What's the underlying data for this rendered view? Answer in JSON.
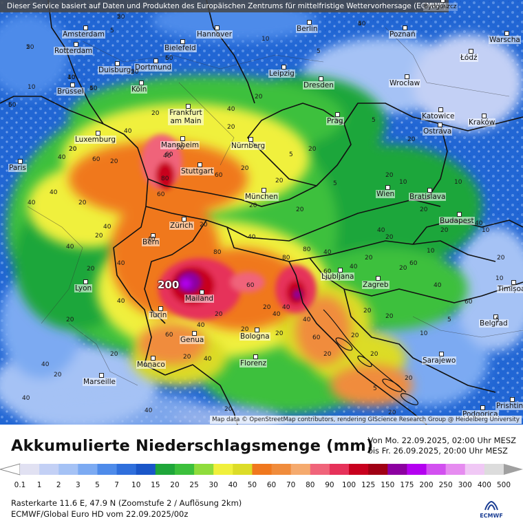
{
  "banner": "Dieser Service basiert auf Daten und Produkten des Europäischen Zentrums für mittelfristige Wettervorhersage (ECMWF)",
  "attribution": "Map data © OpenStreetMap contributors, rendering GIScience Research Group @ Heidelberg University",
  "cities": [
    {
      "name": "Amsterdam"
    },
    {
      "name": "Hannover"
    },
    {
      "name": "Berlin"
    },
    {
      "name": "Poznań"
    },
    {
      "name": "Warscha"
    },
    {
      "name": "Rotterdam"
    },
    {
      "name": "Bielefeld"
    },
    {
      "name": "Łódź"
    },
    {
      "name": "Duisburg"
    },
    {
      "name": "Dortmund"
    },
    {
      "name": "Leipzig"
    },
    {
      "name": "Brüssel"
    },
    {
      "name": "Köln"
    },
    {
      "name": "Dresden"
    },
    {
      "name": "Wrocław"
    },
    {
      "name": "Frankfurt am Main"
    },
    {
      "name": "Katowice"
    },
    {
      "name": "Prag"
    },
    {
      "name": "Kraków"
    },
    {
      "name": "Ostrava"
    },
    {
      "name": "Luxemburg"
    },
    {
      "name": "Mannheim"
    },
    {
      "name": "Nürnberg"
    },
    {
      "name": "Paris"
    },
    {
      "name": "Stuttgart"
    },
    {
      "name": "Wien"
    },
    {
      "name": "Bratislava"
    },
    {
      "name": "München"
    },
    {
      "name": "Zürich"
    },
    {
      "name": "Budapest"
    },
    {
      "name": "Bern"
    },
    {
      "name": "Lyon"
    },
    {
      "name": "Ljubljana"
    },
    {
      "name": "Zagreb"
    },
    {
      "name": "Timișoa"
    },
    {
      "name": "Mailand"
    },
    {
      "name": "Turin"
    },
    {
      "name": "Belgrad"
    },
    {
      "name": "Genua"
    },
    {
      "name": "Bologna"
    },
    {
      "name": "Monaco"
    },
    {
      "name": "Florenz"
    },
    {
      "name": "Sarajewo"
    },
    {
      "name": "Marseille"
    },
    {
      "name": "Podgorica"
    },
    {
      "name": "Prishtin"
    },
    {
      "name": "Bydgoszcz"
    }
  ],
  "max_label": "200",
  "title": "Akkumulierte Niederschlagsmenge (mm)",
  "period": {
    "from": "Von Mo. 22.09.2025, 02:00 Uhr MESZ",
    "to": "bis Fr. 26.09.2025, 20:00 Uhr MESZ"
  },
  "legend": {
    "labels": [
      "0.1",
      "1",
      "2",
      "3",
      "5",
      "7",
      "10",
      "15",
      "20",
      "25",
      "30",
      "40",
      "50",
      "60",
      "70",
      "80",
      "90",
      "100",
      "125",
      "150",
      "175",
      "200",
      "250",
      "300",
      "400",
      "500"
    ],
    "colors": [
      "#e1e1f2",
      "#c3d0f5",
      "#a5c2f5",
      "#7caaf2",
      "#4e8bea",
      "#2f6fdc",
      "#1a56c8",
      "#1fa63a",
      "#3cc03c",
      "#8fdc3c",
      "#f0f03c",
      "#dcdc28",
      "#f0781e",
      "#f08c3c",
      "#f5aa6e",
      "#f0647a",
      "#e6325a",
      "#c8001e",
      "#a00014",
      "#8c00a0",
      "#b400f0",
      "#d250f0",
      "#e68cf0",
      "#f0c8f5",
      "#dcdcdc"
    ]
  },
  "meta1": "Rasterkarte 11.6 E, 47.9 N (Zoomstufe 2 / Auflösung 2km)",
  "meta2": "ECMWF/Global Euro HD vom  22.09.2025/00z",
  "logo_text": "ECMWF",
  "map_values": [
    "5",
    "5",
    "5",
    "5",
    "5",
    "5",
    "5",
    "10",
    "20",
    "40",
    "20",
    "40",
    "60",
    "40",
    "60",
    "40",
    "20",
    "40",
    "40",
    "20",
    "40",
    "40",
    "40",
    "60",
    "80",
    "60",
    "40",
    "20",
    "40",
    "40",
    "20",
    "20",
    "80",
    "40",
    "80",
    "80",
    "60",
    "40",
    "20",
    "40",
    "60",
    "40",
    "20",
    "20",
    "40",
    "60",
    "20",
    "40",
    "20",
    "40",
    "20",
    "20",
    "40",
    "20",
    "40",
    "60",
    "20",
    "20",
    "20",
    "20",
    "40",
    "20",
    "20",
    "20",
    "20",
    "40",
    "40",
    "20",
    "20",
    "20",
    "5",
    "10",
    "5",
    "5",
    "20",
    "20",
    "20",
    "20",
    "20",
    "5",
    "10",
    "5",
    "10",
    "10",
    "5",
    "5",
    "10",
    "10",
    "10",
    "10",
    "20",
    "20",
    "5",
    "20",
    "60",
    "40",
    "60",
    "20",
    "20",
    "20",
    "20",
    "20",
    "20",
    "60",
    "40",
    "20",
    "20",
    "60",
    "40",
    "40",
    "20"
  ]
}
